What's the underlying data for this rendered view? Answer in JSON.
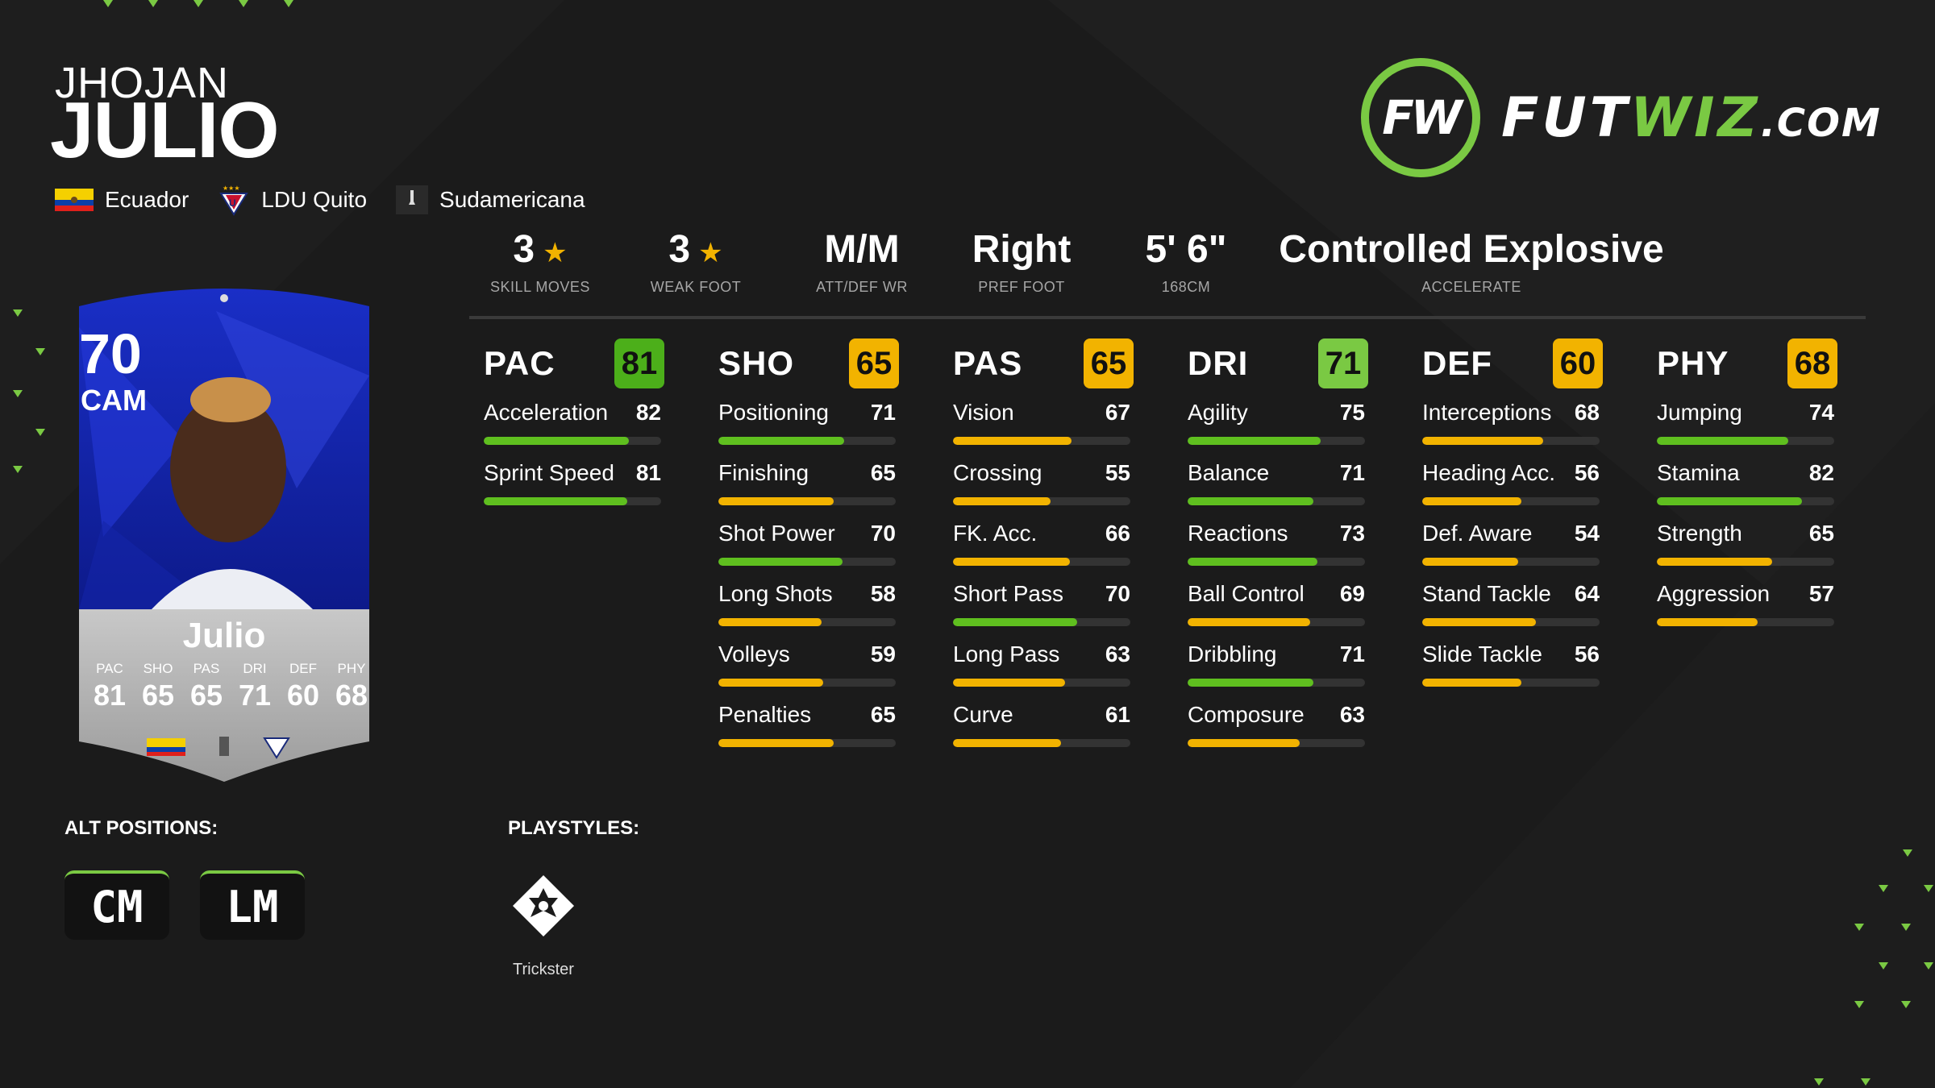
{
  "player": {
    "first_name": "JHOJAN",
    "last_name": "JULIO",
    "nation": "Ecuador",
    "club": "LDU Quito",
    "league": "Sudamericana"
  },
  "logo": {
    "fut": "FUTWIZ",
    "wiz": "",
    "com": ".COM",
    "mark": "FW"
  },
  "info": [
    {
      "value": "3",
      "star": true,
      "label": "SKILL MOVES"
    },
    {
      "value": "3",
      "star": true,
      "label": "WEAK FOOT"
    },
    {
      "value": "M/M",
      "star": false,
      "label": "ATT/DEF WR"
    },
    {
      "value": "Right",
      "star": false,
      "label": "PREF FOOT"
    },
    {
      "value": "5' 6\"",
      "star": false,
      "label": "168CM"
    },
    {
      "value": "Controlled Explosive",
      "star": false,
      "label": "ACCELERATE"
    }
  ],
  "colors": {
    "green": "#7ac943",
    "yellow": "#f2b300",
    "accent": "#7ac943"
  },
  "stats": [
    {
      "name": "PAC",
      "value": "81",
      "color": "#4caf1a",
      "subs": [
        {
          "label": "Acceleration",
          "value": "82"
        },
        {
          "label": "Sprint Speed",
          "value": "81"
        }
      ]
    },
    {
      "name": "SHO",
      "value": "65",
      "color": "#f2b300",
      "subs": [
        {
          "label": "Positioning",
          "value": "71"
        },
        {
          "label": "Finishing",
          "value": "65"
        },
        {
          "label": "Shot Power",
          "value": "70"
        },
        {
          "label": "Long Shots",
          "value": "58"
        },
        {
          "label": "Volleys",
          "value": "59"
        },
        {
          "label": "Penalties",
          "value": "65"
        }
      ]
    },
    {
      "name": "PAS",
      "value": "65",
      "color": "#f2b300",
      "subs": [
        {
          "label": "Vision",
          "value": "67"
        },
        {
          "label": "Crossing",
          "value": "55"
        },
        {
          "label": "FK. Acc.",
          "value": "66"
        },
        {
          "label": "Short Pass",
          "value": "70"
        },
        {
          "label": "Long Pass",
          "value": "63"
        },
        {
          "label": "Curve",
          "value": "61"
        }
      ]
    },
    {
      "name": "DRI",
      "value": "71",
      "color": "#7ac943",
      "subs": [
        {
          "label": "Agility",
          "value": "75"
        },
        {
          "label": "Balance",
          "value": "71"
        },
        {
          "label": "Reactions",
          "value": "73"
        },
        {
          "label": "Ball Control",
          "value": "69"
        },
        {
          "label": "Dribbling",
          "value": "71"
        },
        {
          "label": "Composure",
          "value": "63"
        }
      ]
    },
    {
      "name": "DEF",
      "value": "60",
      "color": "#f2b300",
      "subs": [
        {
          "label": "Interceptions",
          "value": "68"
        },
        {
          "label": "Heading Acc.",
          "value": "56"
        },
        {
          "label": "Def. Aware",
          "value": "54"
        },
        {
          "label": "Stand Tackle",
          "value": "64"
        },
        {
          "label": "Slide Tackle",
          "value": "56"
        }
      ]
    },
    {
      "name": "PHY",
      "value": "68",
      "color": "#f2b300",
      "subs": [
        {
          "label": "Jumping",
          "value": "74"
        },
        {
          "label": "Stamina",
          "value": "82"
        },
        {
          "label": "Strength",
          "value": "65"
        },
        {
          "label": "Aggression",
          "value": "57"
        }
      ]
    }
  ],
  "card": {
    "rating": "70",
    "position": "CAM",
    "name": "Julio",
    "stats": [
      {
        "label": "PAC",
        "value": "81"
      },
      {
        "label": "SHO",
        "value": "65"
      },
      {
        "label": "PAS",
        "value": "65"
      },
      {
        "label": "DRI",
        "value": "71"
      },
      {
        "label": "DEF",
        "value": "60"
      },
      {
        "label": "PHY",
        "value": "68"
      }
    ]
  },
  "alt_positions": {
    "title": "ALT POSITIONS:",
    "items": [
      "CM",
      "LM"
    ]
  },
  "playstyles": {
    "title": "PLAYSTYLES:",
    "items": [
      "Trickster"
    ]
  }
}
